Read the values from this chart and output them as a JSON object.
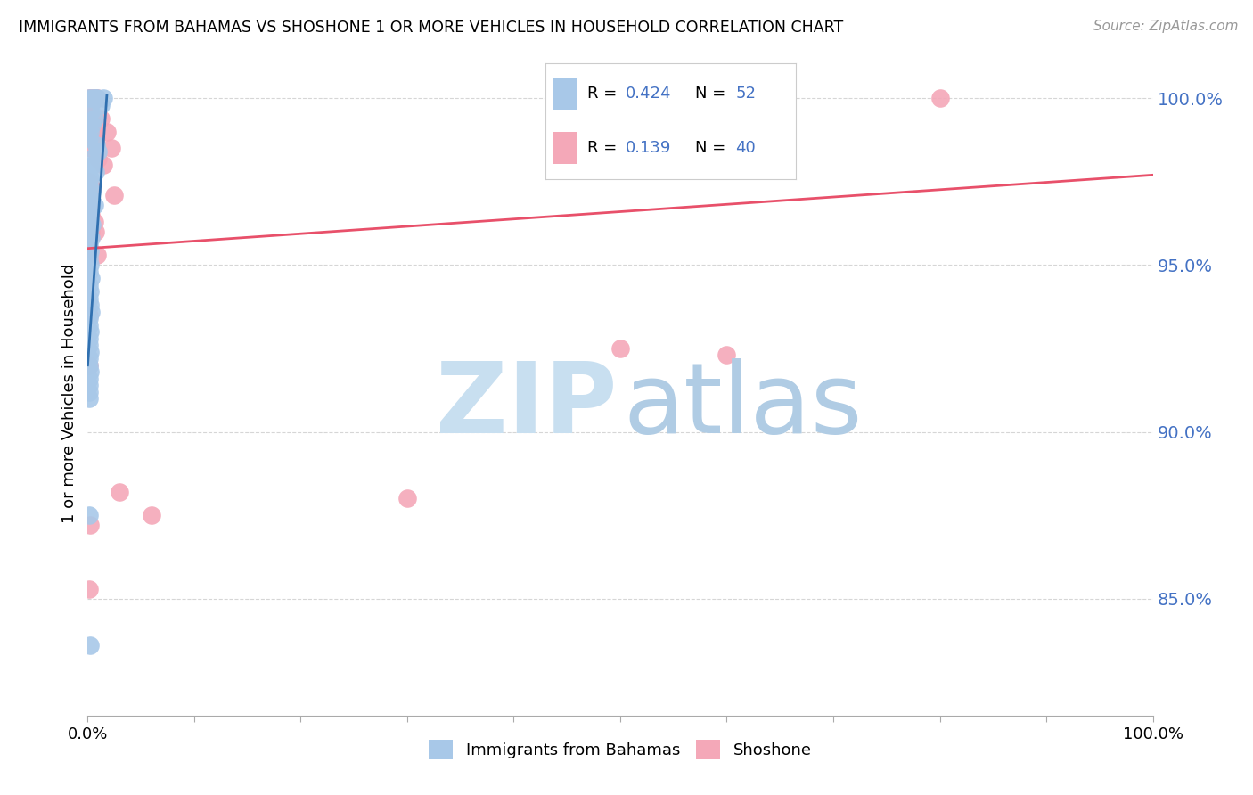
{
  "title": "IMMIGRANTS FROM BAHAMAS VS SHOSHONE 1 OR MORE VEHICLES IN HOUSEHOLD CORRELATION CHART",
  "source": "Source: ZipAtlas.com",
  "ylabel": "1 or more Vehicles in Household",
  "xlim": [
    0.0,
    1.0
  ],
  "ylim": [
    0.815,
    1.008
  ],
  "yticks": [
    0.85,
    0.9,
    0.95,
    1.0
  ],
  "ytick_labels": [
    "85.0%",
    "90.0%",
    "95.0%",
    "100.0%"
  ],
  "xticks": [
    0.0,
    0.1,
    0.2,
    0.3,
    0.4,
    0.5,
    0.6,
    0.7,
    0.8,
    0.9,
    1.0
  ],
  "blue_R": 0.424,
  "blue_N": 52,
  "pink_R": 0.139,
  "pink_N": 40,
  "blue_color": "#a8c8e8",
  "pink_color": "#f4a8b8",
  "blue_line_color": "#3070b0",
  "pink_line_color": "#e8506a",
  "watermark_zip_color": "#c8dff0",
  "watermark_atlas_color": "#b0cce4",
  "background_color": "#ffffff",
  "legend_color": "#4472c4",
  "blue_scatter_x": [
    0.001,
    0.005,
    0.007,
    0.009,
    0.012,
    0.003,
    0.006,
    0.004,
    0.002,
    0.001,
    0.008,
    0.01,
    0.003,
    0.005,
    0.007,
    0.002,
    0.001,
    0.004,
    0.003,
    0.006,
    0.001,
    0.002,
    0.004,
    0.001,
    0.003,
    0.001,
    0.002,
    0.001,
    0.002,
    0.001,
    0.003,
    0.001,
    0.002,
    0.001,
    0.002,
    0.003,
    0.001,
    0.001,
    0.002,
    0.001,
    0.001,
    0.002,
    0.001,
    0.001,
    0.002,
    0.001,
    0.001,
    0.001,
    0.001,
    0.001,
    0.002,
    0.015
  ],
  "blue_scatter_y": [
    1.0,
    1.0,
    1.0,
    1.0,
    0.998,
    0.996,
    0.994,
    0.992,
    0.99,
    0.988,
    0.986,
    0.984,
    0.982,
    0.98,
    0.978,
    0.976,
    0.974,
    0.972,
    0.97,
    0.968,
    0.966,
    0.964,
    0.962,
    0.96,
    0.958,
    0.956,
    0.954,
    0.952,
    0.95,
    0.948,
    0.946,
    0.944,
    0.942,
    0.94,
    0.938,
    0.936,
    0.934,
    0.932,
    0.93,
    0.928,
    0.926,
    0.924,
    0.922,
    0.92,
    0.918,
    0.916,
    0.914,
    0.912,
    0.91,
    0.875,
    0.836,
    1.0
  ],
  "pink_scatter_x": [
    0.001,
    0.003,
    0.005,
    0.007,
    0.008,
    0.009,
    0.8,
    0.002,
    0.004,
    0.006,
    0.008,
    0.003,
    0.01,
    0.015,
    0.001,
    0.004,
    0.025,
    0.002,
    0.006,
    0.003,
    0.001,
    0.009,
    0.5,
    0.6,
    0.002,
    0.003,
    0.3,
    0.001,
    0.06,
    0.001,
    0.002,
    0.012,
    0.018,
    0.022,
    0.03,
    0.002,
    0.007,
    0.001,
    0.002,
    0.001
  ],
  "pink_scatter_y": [
    1.0,
    1.0,
    1.0,
    1.0,
    1.0,
    1.0,
    1.0,
    0.998,
    0.993,
    0.99,
    0.988,
    0.985,
    0.982,
    0.98,
    0.975,
    0.973,
    0.971,
    0.965,
    0.963,
    0.96,
    0.955,
    0.953,
    0.925,
    0.923,
    0.97,
    0.965,
    0.88,
    0.853,
    0.875,
    0.968,
    0.998,
    0.994,
    0.99,
    0.985,
    0.882,
    0.968,
    0.96,
    0.935,
    0.872,
    0.92
  ],
  "blue_line_x": [
    0.0,
    0.018
  ],
  "blue_line_y": [
    0.92,
    1.001
  ],
  "pink_line_x": [
    0.0,
    1.0
  ],
  "pink_line_y": [
    0.955,
    0.977
  ]
}
